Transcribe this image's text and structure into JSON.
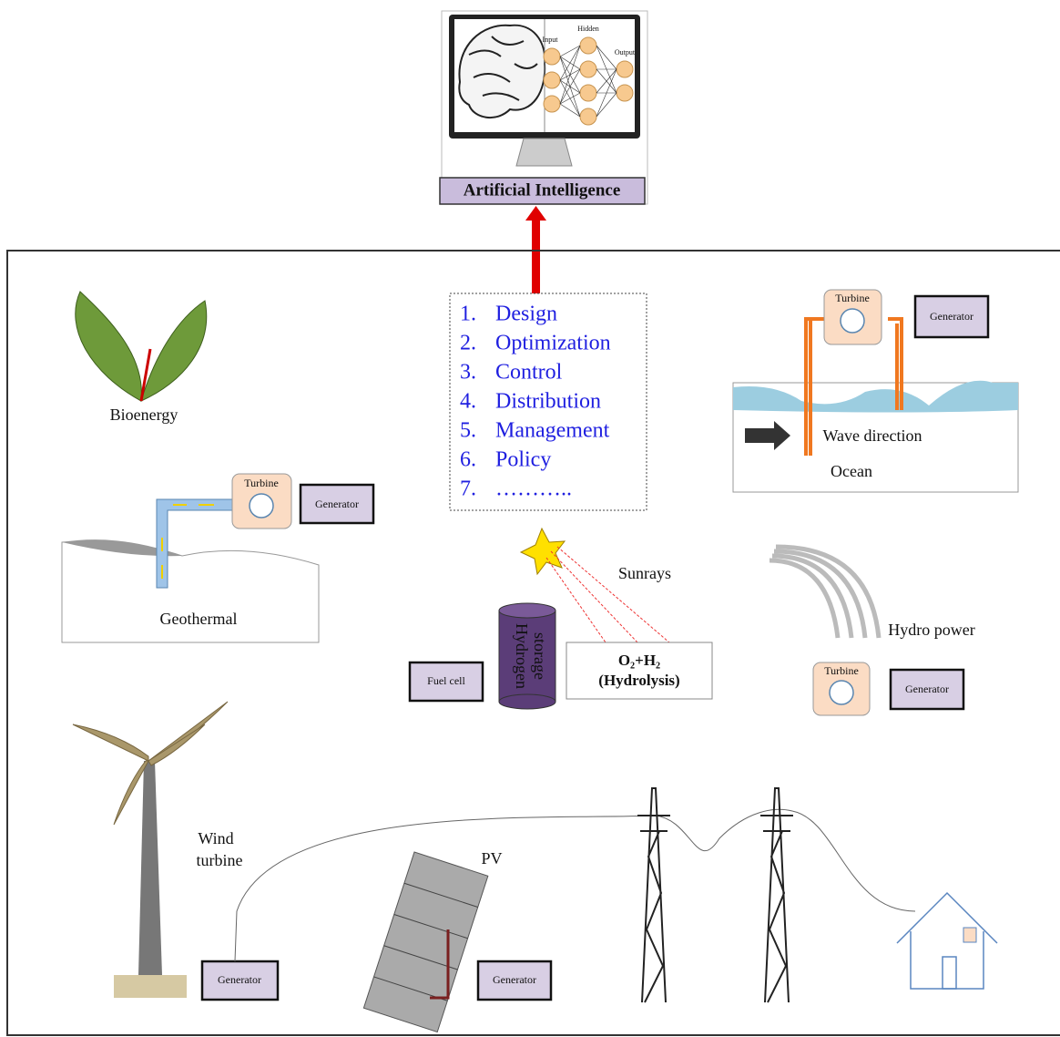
{
  "ai": {
    "title": "Artificial Intelligence",
    "screen_labels": [
      "Input",
      "Hidden",
      "Output"
    ]
  },
  "tasks": [
    {
      "number": "1.",
      "label": "Design"
    },
    {
      "number": "2.",
      "label": "Optimization"
    },
    {
      "number": "3.",
      "label": "Control"
    },
    {
      "number": "4.",
      "label": "Distribution"
    },
    {
      "number": "5.",
      "label": "Management"
    },
    {
      "number": "6.",
      "label": "Policy"
    },
    {
      "number": "7.",
      "label": "……….."
    }
  ],
  "sources": {
    "bioenergy": {
      "label": "Bioenergy"
    },
    "geothermal": {
      "label": "Geothermal",
      "turbine": "Turbine",
      "generator": "Generator"
    },
    "ocean": {
      "label": "Ocean",
      "wave": "Wave direction",
      "turbine": "Turbine",
      "generator": "Generator"
    },
    "hydrogen": {
      "sunrays": "Sunrays",
      "storage": [
        "Hydrogen",
        "storage"
      ],
      "fuel_cell": "Fuel cell",
      "reaction": "O₂+H₂",
      "process": "(Hydrolysis)"
    },
    "hydro": {
      "label": "Hydro power",
      "turbine": "Turbine",
      "generator": "Generator"
    },
    "wind": {
      "label": [
        "Wind",
        "turbine"
      ],
      "generator": "Generator"
    },
    "pv": {
      "label": "PV",
      "generator": "Generator"
    }
  }
}
